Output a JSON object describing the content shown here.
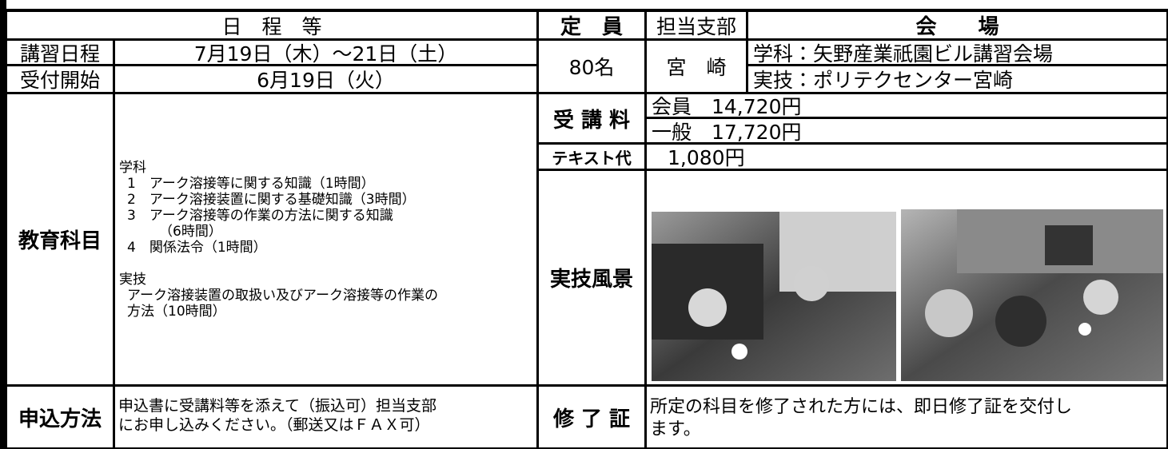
{
  "header": {
    "schedule": "日　程　等",
    "capacity": "定　員",
    "branch": "担当支部",
    "venue": "会　　場"
  },
  "schedule": {
    "dates": {
      "label": "講習日程",
      "value": "7月19日（木）～21日（土）"
    },
    "reception": {
      "label": "受付開始",
      "value": "6月19日（火）"
    }
  },
  "capacity": "80名",
  "branch": "宮　崎",
  "venue": [
    "学科：矢野産業祇園ビル講習会場",
    "実技：ポリテクセンター宮崎"
  ],
  "subjects": {
    "label": "教育科目",
    "lines": [
      "学科",
      "1　アーク溶接等に関する知識（1時間）",
      "2　アーク溶接装置に関する基礎知識（3時間）",
      "3　アーク溶接等の作業の方法に関する知識",
      "（6時間）",
      "4　関係法令（1時間）",
      "実技",
      "アーク溶接装置の取扱い及びアーク溶接等の作業の",
      "方法（10時間）"
    ]
  },
  "fee": {
    "label": "受 講 料",
    "items": [
      "会員　14,720円",
      "一般　17,720円"
    ]
  },
  "text_fee": {
    "label": "テキスト代",
    "value": "1,080円"
  },
  "scene": {
    "label": "実技風景"
  },
  "apply": {
    "label": "申込方法",
    "lines": [
      "申込書に受講料等を添えて（振込可）担当支部",
      "にお申し込みください。（郵送又はＦＡＸ可）"
    ]
  },
  "certificate": {
    "label": "修 了 証",
    "lines": [
      "所定の科目を修了された方には、即日修了証を交付し",
      "ます。"
    ]
  }
}
